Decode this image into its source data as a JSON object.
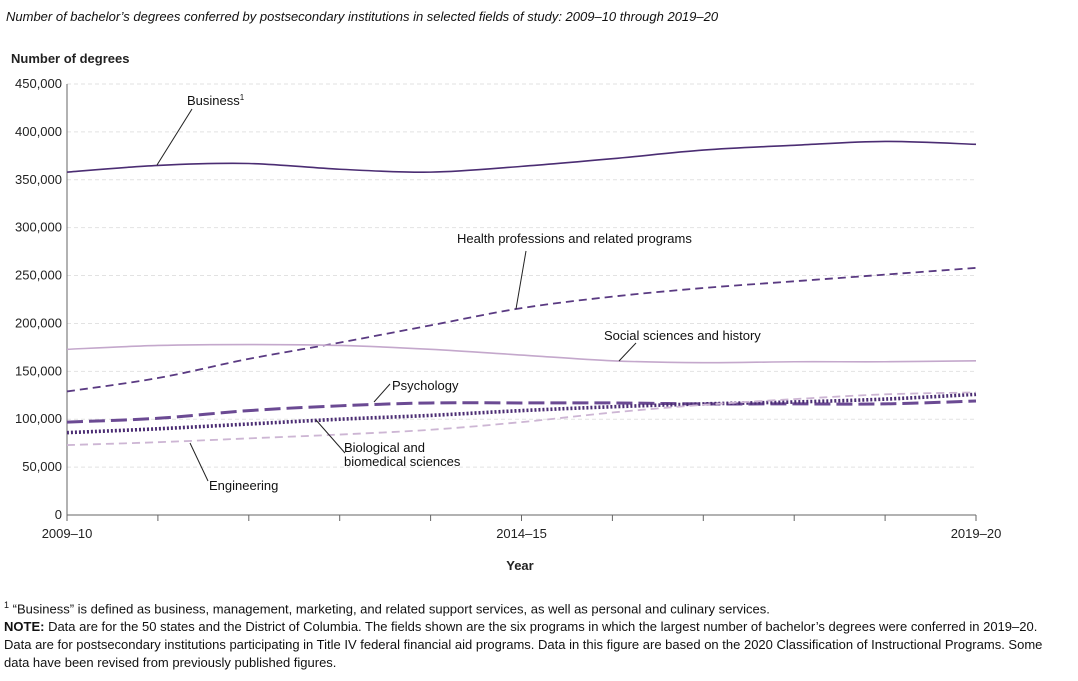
{
  "figure_title": "Number of bachelor’s degrees conferred by postsecondary institutions in selected fields of study: 2009–10 through 2019–20",
  "chart_data": {
    "type": "line",
    "ylabel": "Number of degrees",
    "xlabel": "Year",
    "ylim": [
      0,
      450000
    ],
    "yticks": [
      0,
      50000,
      100000,
      150000,
      200000,
      250000,
      300000,
      350000,
      400000,
      450000
    ],
    "ytick_labels": [
      "0",
      "50,000",
      "100,000",
      "150,000",
      "200,000",
      "250,000",
      "300,000",
      "350,000",
      "400,000",
      "450,000"
    ],
    "x": [
      "2009–10",
      "2010–11",
      "2011–12",
      "2012–13",
      "2013–14",
      "2014–15",
      "2015–16",
      "2016–17",
      "2017–18",
      "2018–19",
      "2019–20"
    ],
    "x_tick_labels": [
      "2009–10",
      "",
      "",
      "",
      "",
      "2014–15",
      "",
      "",
      "",
      "",
      "2019–20"
    ],
    "grid": "horizontal",
    "series": [
      {
        "name": "Business",
        "name_sup": "1",
        "values": [
          358000,
          365000,
          367000,
          361000,
          358000,
          364000,
          372000,
          381000,
          386000,
          390000,
          387000
        ],
        "color": "#4b2d73",
        "style": "solid"
      },
      {
        "name": "Health professions and related programs",
        "values": [
          129000,
          143000,
          163000,
          180000,
          198000,
          216000,
          228000,
          237000,
          244000,
          251000,
          258000
        ],
        "color": "#5a3a82",
        "style": "dashed"
      },
      {
        "name": "Social sciences and history",
        "values": [
          173000,
          177000,
          178000,
          177000,
          173000,
          167000,
          161000,
          159000,
          160000,
          160000,
          161000
        ],
        "color": "#c4a8cc",
        "style": "solid"
      },
      {
        "name": "Psychology",
        "values": [
          97000,
          101000,
          109000,
          114000,
          117000,
          117000,
          117000,
          116000,
          116000,
          116000,
          119000
        ],
        "color": "#6b4a93",
        "style": "longdash"
      },
      {
        "name": "Biological and biomedical sciences",
        "values": [
          86000,
          90000,
          95000,
          100000,
          104000,
          109000,
          113000,
          116000,
          118000,
          121000,
          126000
        ],
        "color": "#4b2d73",
        "style": "dotted"
      },
      {
        "name": "Engineering",
        "values": [
          73000,
          76000,
          80000,
          84000,
          89000,
          97000,
          107000,
          115000,
          121000,
          126000,
          128000
        ],
        "color": "#cdb6d4",
        "style": "dashed"
      }
    ]
  },
  "labels": {
    "business": "Business",
    "business_sup": "1",
    "health": "Health professions and related programs",
    "social": "Social sciences and history",
    "psychology": "Psychology",
    "bio_line1": "Biological and",
    "bio_line2": "biomedical sciences",
    "engineering": "Engineering"
  },
  "footnotes": {
    "note1_marker": "1",
    "note1": " “Business” is defined as business, management, marketing, and related support services, as well as personal and culinary services.",
    "note_label": "NOTE:",
    "note": " Data are for the 50 states and the District of Columbia. The fields shown are the six programs in which the largest number of bachelor’s degrees were conferred in 2019–20. Data are for postsecondary institutions participating in Title IV federal financial aid programs. Data in this figure are based on the 2020 Classification of Instructional Programs. Some data have been revised from previously published figures."
  }
}
